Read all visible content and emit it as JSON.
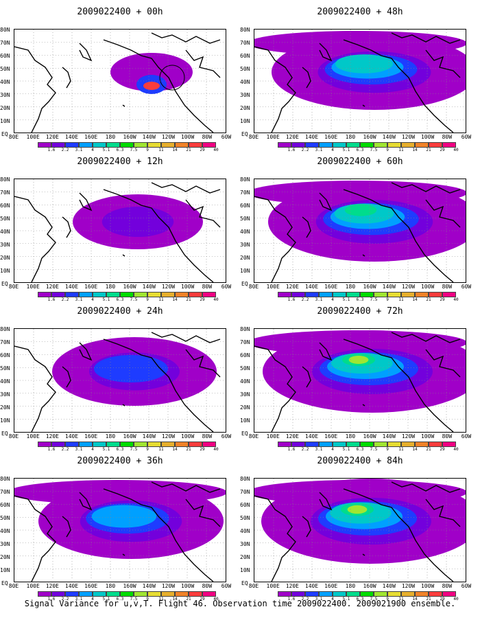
{
  "caption": "Signal Variance for u,v,T. Flight 46. Observation time 2009022400. 2009021900 ensemble.",
  "lat_labels": [
    "80N",
    "70N",
    "60N",
    "50N",
    "40N",
    "30N",
    "20N",
    "10N",
    "EQ"
  ],
  "lon_labels": [
    "80E",
    "100E",
    "120E",
    "140E",
    "160E",
    "180",
    "160W",
    "140W",
    "120W",
    "100W",
    "80W",
    "60W"
  ],
  "colorbar": {
    "colors": [
      "#a000c8",
      "#7300dc",
      "#1e3cff",
      "#00a0ff",
      "#00c8c8",
      "#00dc8c",
      "#00dc00",
      "#a0e632",
      "#e6dc32",
      "#e6af2d",
      "#f08228",
      "#fa3c3c",
      "#f00082"
    ],
    "labels": [
      "1.6",
      "2.2",
      "3.1",
      "4",
      "5.1",
      "6.3",
      "7.5",
      "9",
      "11",
      "14",
      "21",
      "29",
      "40"
    ]
  },
  "panels": [
    {
      "title": "2009022400 + 00h",
      "intensity": 0
    },
    {
      "title": "2009022400 + 12h",
      "intensity": 1
    },
    {
      "title": "2009022400 + 24h",
      "intensity": 2
    },
    {
      "title": "2009022400 + 36h",
      "intensity": 3
    },
    {
      "title": "2009022400 + 48h",
      "intensity": 4
    },
    {
      "title": "2009022400 + 60h",
      "intensity": 5
    },
    {
      "title": "2009022400 + 72h",
      "intensity": 6
    },
    {
      "title": "2009022400 + 84h",
      "intensity": 7
    }
  ]
}
